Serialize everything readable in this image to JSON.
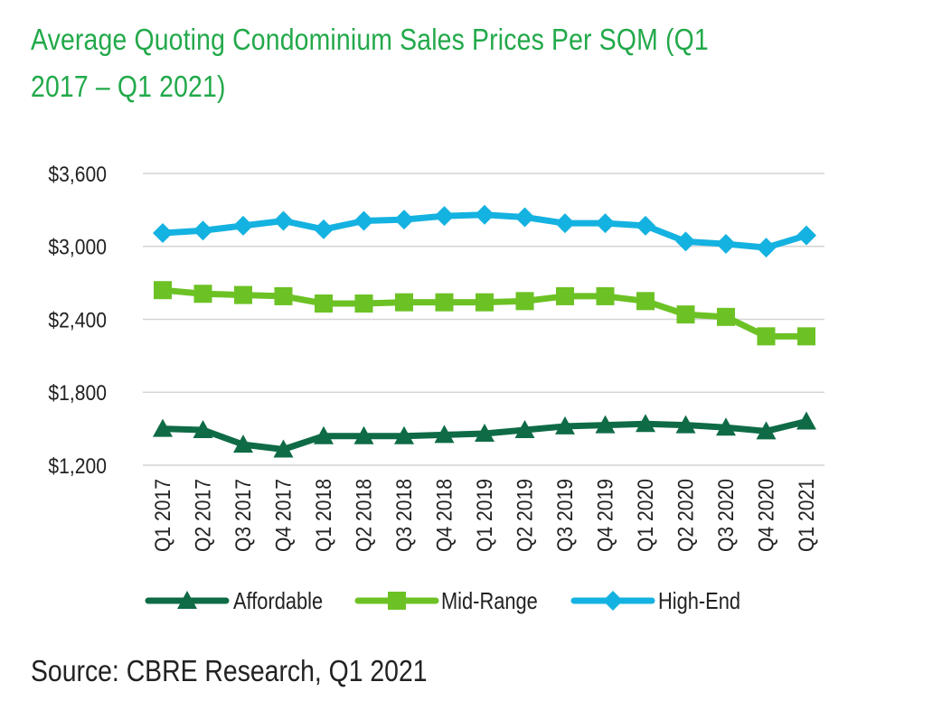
{
  "title": "Average Quoting Condominium Sales Prices Per SQM (Q1 2017 – Q1 2021)",
  "source": "Source: CBRE Research, Q1 2021",
  "chart_data": {
    "type": "line",
    "title": "Average Quoting Condominium Sales Prices Per SQM (Q1 2017 – Q1 2021)",
    "xlabel": "",
    "ylabel": "",
    "ylim": [
      1200,
      3600
    ],
    "yticks": [
      1200,
      1800,
      2400,
      3000,
      3600
    ],
    "ytick_labels": [
      "$1,200",
      "$1,800",
      "$2,400",
      "$3,000",
      "$3,600"
    ],
    "grid": "horizontal",
    "legend_position": "bottom",
    "categories": [
      "Q1 2017",
      "Q2 2017",
      "Q3 2017",
      "Q4 2017",
      "Q1 2018",
      "Q2 2018",
      "Q3 2018",
      "Q4 2018",
      "Q1 2019",
      "Q2 2019",
      "Q3 2019",
      "Q4 2019",
      "Q1 2020",
      "Q2 2020",
      "Q3 2020",
      "Q4 2020",
      "Q1 2021"
    ],
    "series": [
      {
        "name": "Affordable",
        "color": "#0e6b46",
        "marker": "triangle",
        "values": [
          1500,
          1490,
          1370,
          1330,
          1440,
          1440,
          1440,
          1450,
          1460,
          1490,
          1520,
          1530,
          1540,
          1530,
          1510,
          1480,
          1560
        ]
      },
      {
        "name": "Mid-Range",
        "color": "#6cc224",
        "marker": "square",
        "values": [
          2640,
          2610,
          2600,
          2590,
          2530,
          2530,
          2540,
          2540,
          2540,
          2550,
          2590,
          2590,
          2550,
          2440,
          2420,
          2260,
          2260
        ]
      },
      {
        "name": "High-End",
        "color": "#14b2e0",
        "marker": "diamond",
        "values": [
          3110,
          3130,
          3170,
          3210,
          3140,
          3210,
          3220,
          3250,
          3260,
          3240,
          3190,
          3190,
          3170,
          3040,
          3020,
          2990,
          3090
        ]
      }
    ]
  }
}
